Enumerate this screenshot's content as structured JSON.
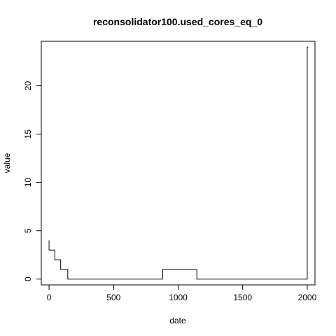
{
  "chart_data": {
    "type": "line",
    "title": "reconsolidator100.used_cores_eq_0",
    "xlabel": "date",
    "ylabel": "value",
    "xlim": [
      -60,
      2060
    ],
    "ylim": [
      -0.6,
      24.6
    ],
    "x_ticks": [
      0,
      500,
      1000,
      1500,
      2000
    ],
    "y_ticks": [
      0,
      5,
      10,
      15,
      20
    ],
    "x_tick_labels": [
      "0",
      "500",
      "1000",
      "1500",
      "2000"
    ],
    "y_tick_labels": [
      "0",
      "5",
      "10",
      "15",
      "20"
    ],
    "grid": false,
    "legend": "none",
    "line_color": "#000000",
    "series": [
      {
        "x": [
          0,
          0,
          15,
          45,
          45,
          55,
          55,
          60,
          60,
          90,
          90,
          95,
          95,
          145,
          145,
          880,
          880,
          1145,
          1145,
          2000,
          2000,
          2008
        ],
        "y": [
          4,
          3,
          3,
          3,
          2,
          2,
          2,
          2,
          2,
          2,
          1,
          1,
          1,
          1,
          0,
          0,
          1,
          1,
          0,
          0,
          24,
          24
        ]
      }
    ]
  }
}
